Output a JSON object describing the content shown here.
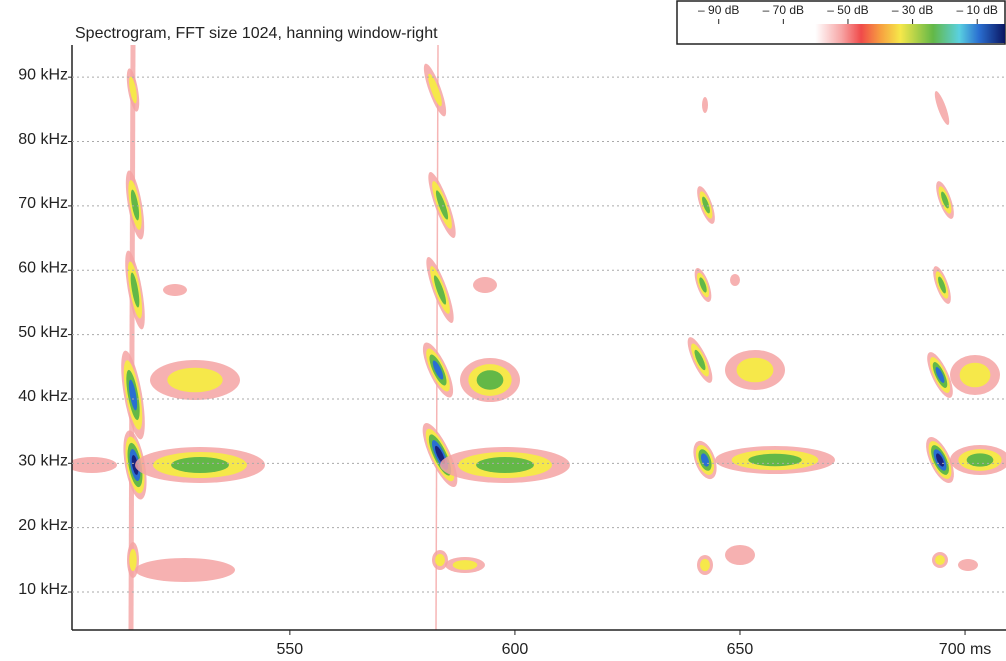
{
  "chart_data": {
    "type": "spectrogram",
    "title": "Spectrogram, FFT size 1024, hanning window-right",
    "xlim": [
      501.6,
      709.1
    ],
    "xticks": [
      550,
      600,
      650,
      {
        "value": 700,
        "label": "700 ms"
      }
    ],
    "ylim": [
      4.1,
      95
    ],
    "yticks": [
      {
        "value": 10,
        "label": "10 kHz"
      },
      {
        "value": 20,
        "label": "20 kHz"
      },
      {
        "value": 30,
        "label": "30 kHz"
      },
      {
        "value": 40,
        "label": "40 kHz"
      },
      {
        "value": 50,
        "label": "50 kHz"
      },
      {
        "value": 60,
        "label": "60 kHz"
      },
      {
        "value": 70,
        "label": "70 kHz"
      },
      {
        "value": 80,
        "label": "80 kHz"
      },
      {
        "value": 90,
        "label": "90 kHz"
      }
    ],
    "grid": true,
    "colorbar": {
      "lim": [
        -102.6,
        -1.4
      ],
      "ticks": [
        {
          "value": -90,
          "label": "– 90 dB"
        },
        {
          "value": -70,
          "label": "– 70 dB"
        },
        {
          "value": -50,
          "label": "– 50 dB"
        },
        {
          "value": -30,
          "label": "– 30 dB"
        },
        {
          "value": -10,
          "label": "– 10 dB"
        }
      ]
    }
  }
}
